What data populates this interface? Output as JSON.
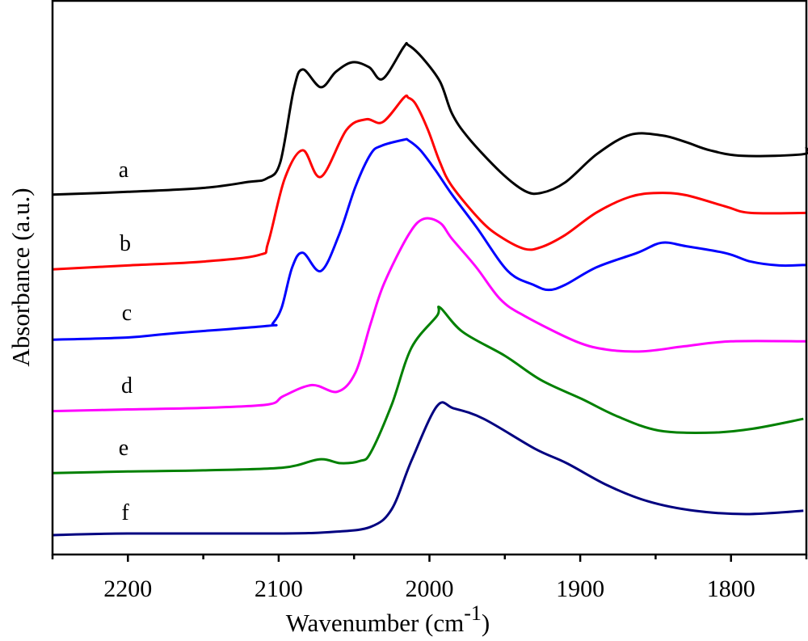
{
  "chart_data": {
    "type": "line",
    "title": "",
    "xlabel": "Wavenumber (cm",
    "xlabel_superscript": "-1",
    "xlabel_suffix": ")",
    "ylabel": "Absorbance (a.u.)",
    "xlim": [
      2250,
      1750
    ],
    "ylim": [
      0,
      100
    ],
    "x_reversed": true,
    "grid": false,
    "x_ticks": [
      2200,
      2100,
      2000,
      1900,
      1800
    ],
    "x_tick_labels": [
      "2200",
      "2100",
      "2000",
      "1900",
      "1800"
    ],
    "x_minor_ticks": [
      2250,
      2150,
      2050,
      1950,
      1850,
      1750
    ],
    "y_ticks": [],
    "series": [
      {
        "name": "a",
        "color": "#000000",
        "x": [
          2250,
          2200,
          2150,
          2120,
          2108,
          2099,
          2090,
          2084,
          2072,
          2062,
          2051,
          2040,
          2031,
          2017,
          2014,
          2005,
          1993,
          1985,
          1974,
          1953,
          1937,
          1926,
          1910,
          1889,
          1867,
          1846,
          1830,
          1814,
          1792,
          1752,
          1750
        ],
        "y": [
          65.0,
          65.5,
          66.2,
          67.3,
          67.9,
          70.8,
          84.0,
          87.6,
          84.4,
          87.2,
          88.9,
          88.0,
          85.9,
          91.7,
          92.0,
          89.8,
          85.4,
          79.6,
          75.2,
          69.1,
          65.7,
          65.3,
          67.2,
          72.3,
          75.8,
          75.7,
          74.5,
          73.0,
          72.0,
          72.3,
          73.5
        ]
      },
      {
        "name": "b",
        "color": "#ff0000",
        "x": [
          2250,
          2200,
          2150,
          2113,
          2107,
          2096,
          2084,
          2072,
          2055,
          2042,
          2031,
          2017,
          2014,
          2009,
          2001,
          1993,
          1985,
          1966,
          1953,
          1937,
          1926,
          1910,
          1889,
          1867,
          1849,
          1830,
          1803,
          1787,
          1750
        ],
        "y": [
          51.5,
          52.2,
          52.9,
          54.1,
          56.3,
          67.9,
          73.0,
          68.2,
          76.7,
          78.6,
          78.1,
          82.5,
          82.5,
          81.3,
          76.7,
          70.8,
          66.5,
          60.3,
          57.4,
          55.2,
          55.5,
          57.7,
          61.8,
          64.6,
          65.3,
          64.9,
          62.8,
          61.7,
          61.7
        ]
      },
      {
        "name": "c",
        "color": "#0000ff",
        "x": [
          2250,
          2200,
          2172,
          2107,
          2104,
          2098,
          2091,
          2084,
          2072,
          2060,
          2049,
          2039,
          2032,
          2017,
          2014,
          2006,
          1996,
          1985,
          1969,
          1948,
          1931,
          1921,
          1910,
          1889,
          1862,
          1846,
          1830,
          1803,
          1787,
          1768,
          1750
        ],
        "y": [
          38.8,
          39.2,
          39.9,
          41.3,
          41.7,
          44.6,
          51.9,
          54.5,
          51.2,
          57.7,
          66.5,
          72.3,
          73.8,
          74.9,
          74.8,
          73.0,
          69.4,
          65.0,
          59.2,
          51.2,
          48.7,
          47.8,
          48.7,
          51.9,
          54.5,
          56.3,
          55.7,
          54.4,
          52.9,
          52.2,
          52.3
        ]
      },
      {
        "name": "d",
        "color": "#ff00ff",
        "x": [
          2250,
          2200,
          2148,
          2107,
          2097,
          2078,
          2061,
          2049,
          2039,
          2030,
          2014,
          2004,
          1993,
          1985,
          1969,
          1953,
          1937,
          1903,
          1882,
          1858,
          1831,
          1800,
          1750
        ],
        "y": [
          25.9,
          26.2,
          26.5,
          27.1,
          28.6,
          30.6,
          29.4,
          32.9,
          41.7,
          49.0,
          57.7,
          60.6,
          59.9,
          57.0,
          51.9,
          46.1,
          43.1,
          38.5,
          37.0,
          36.7,
          37.6,
          38.5,
          38.5
        ]
      },
      {
        "name": "e",
        "color": "#008000",
        "x": [
          2250,
          2200,
          2150,
          2097,
          2073,
          2059,
          2046,
          2039,
          2025,
          2012,
          1995,
          1993,
          1978,
          1950,
          1926,
          1899,
          1875,
          1848,
          1814,
          1786,
          1752
        ],
        "y": [
          14.7,
          15.0,
          15.2,
          15.7,
          17.2,
          16.5,
          16.9,
          18.4,
          27.1,
          37.3,
          43.1,
          44.6,
          40.2,
          35.9,
          31.5,
          28.1,
          24.9,
          22.4,
          22.0,
          22.7,
          24.5
        ]
      },
      {
        "name": "f",
        "color": "#000080",
        "x": [
          2250,
          2200,
          2100,
          2063,
          2039,
          2025,
          2012,
          1995,
          1984,
          1964,
          1930,
          1909,
          1882,
          1855,
          1824,
          1790,
          1752
        ],
        "y": [
          3.5,
          3.8,
          3.8,
          4.1,
          5.0,
          8.2,
          16.9,
          26.8,
          26.4,
          24.5,
          19.1,
          16.5,
          12.5,
          9.6,
          7.9,
          7.3,
          7.9
        ]
      }
    ],
    "annotations": [
      "a",
      "b",
      "c",
      "d",
      "e",
      "f"
    ]
  }
}
